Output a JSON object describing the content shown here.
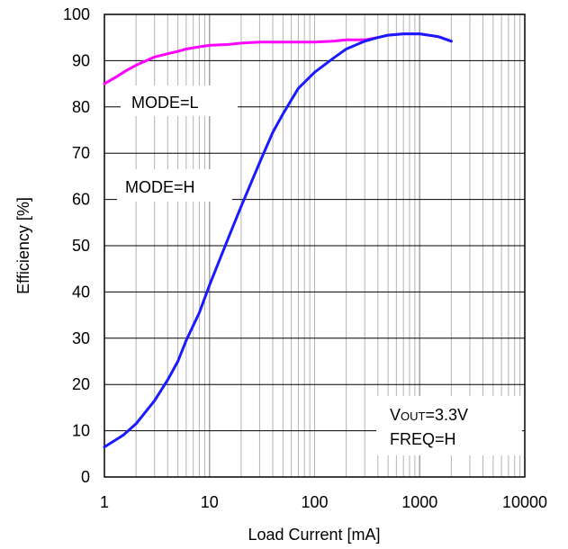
{
  "chart_data": {
    "type": "line",
    "xlabel": "Load Current [mA]",
    "ylabel": "Efficiency [%]",
    "xscale": "log",
    "xlim": [
      1,
      10000
    ],
    "ylim": [
      0,
      100
    ],
    "grid": true,
    "x_ticks": [
      "1",
      "10",
      "100",
      "1000",
      "10000"
    ],
    "y_ticks": [
      "0",
      "10",
      "20",
      "30",
      "40",
      "50",
      "60",
      "70",
      "80",
      "90",
      "100"
    ],
    "series": [
      {
        "name": "MODE=L",
        "color": "#ff00ff",
        "points": [
          [
            1,
            85
          ],
          [
            1.3,
            86.5
          ],
          [
            1.6,
            87.8
          ],
          [
            2,
            89
          ],
          [
            2.5,
            90
          ],
          [
            3,
            90.8
          ],
          [
            4,
            91.5
          ],
          [
            5,
            92
          ],
          [
            6,
            92.5
          ],
          [
            8,
            93
          ],
          [
            10,
            93.3
          ],
          [
            15,
            93.5
          ],
          [
            20,
            93.8
          ],
          [
            30,
            94
          ],
          [
            50,
            94
          ],
          [
            100,
            94
          ],
          [
            150,
            94.2
          ],
          [
            200,
            94.5
          ],
          [
            300,
            94.5
          ],
          [
            400,
            95
          ],
          [
            500,
            95.5
          ],
          [
            700,
            95.8
          ],
          [
            1000,
            95.8
          ],
          [
            1500,
            95.2
          ],
          [
            2000,
            94.2
          ]
        ]
      },
      {
        "name": "MODE=H",
        "color": "#1a1aff",
        "points": [
          [
            1,
            6.5
          ],
          [
            1.5,
            9
          ],
          [
            2,
            11.5
          ],
          [
            3,
            16.5
          ],
          [
            4,
            21
          ],
          [
            5,
            25
          ],
          [
            6,
            29.5
          ],
          [
            8,
            35.5
          ],
          [
            10,
            41.5
          ],
          [
            15,
            51.5
          ],
          [
            20,
            58.5
          ],
          [
            30,
            68
          ],
          [
            40,
            74.5
          ],
          [
            50,
            78.5
          ],
          [
            60,
            81.5
          ],
          [
            70,
            84
          ],
          [
            100,
            87.5
          ],
          [
            150,
            90.5
          ],
          [
            200,
            92.5
          ],
          [
            300,
            94.2
          ],
          [
            400,
            95
          ],
          [
            500,
            95.5
          ],
          [
            700,
            95.8
          ],
          [
            1000,
            95.8
          ],
          [
            1500,
            95.2
          ],
          [
            2000,
            94.2
          ]
        ]
      }
    ],
    "annotations": {
      "mode_l": "MODE=L",
      "mode_h": "MODE=H",
      "vout_main": "V",
      "vout_sub": "OUT",
      "vout_value": "=3.3V",
      "freq": "FREQ=H"
    }
  }
}
